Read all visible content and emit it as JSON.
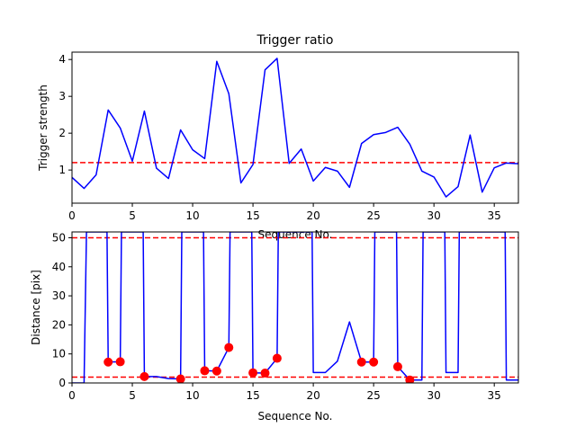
{
  "chart_data": [
    {
      "type": "line",
      "title": "Trigger ratio",
      "xlabel": "Sequence No.",
      "ylabel": "Trigger strength",
      "xlim": [
        0,
        37
      ],
      "ylim": [
        0.1,
        4.2
      ],
      "xticks": [
        "0",
        "5",
        "10",
        "15",
        "20",
        "25",
        "30",
        "35"
      ],
      "yticks": [
        "1",
        "2",
        "3",
        "4"
      ],
      "threshold": 1.2,
      "line_color": "#0000ff",
      "threshold_color": "#ff0000",
      "x": [
        0,
        1,
        2,
        3,
        4,
        5,
        6,
        7,
        8,
        9,
        10,
        11,
        12,
        13,
        14,
        15,
        16,
        17,
        18,
        19,
        20,
        21,
        22,
        23,
        24,
        25,
        26,
        27,
        28,
        29,
        30,
        31,
        32,
        33,
        34,
        35,
        36,
        37
      ],
      "values": [
        0.8,
        0.5,
        0.87,
        2.63,
        2.14,
        1.24,
        2.6,
        1.05,
        0.77,
        2.09,
        1.55,
        1.31,
        3.95,
        3.07,
        0.65,
        1.15,
        3.72,
        4.03,
        1.18,
        1.57,
        0.7,
        1.07,
        0.97,
        0.53,
        1.72,
        1.96,
        2.02,
        2.16,
        1.7,
        0.97,
        0.81,
        0.27,
        0.55,
        1.95,
        0.4,
        1.06,
        1.19,
        1.17
      ]
    },
    {
      "type": "line",
      "title": "",
      "xlabel": "Sequence No.",
      "ylabel": "Distance [pix]",
      "xlim": [
        0,
        37
      ],
      "ylim": [
        0,
        52
      ],
      "xticks": [
        "0",
        "5",
        "10",
        "15",
        "20",
        "25",
        "30",
        "35"
      ],
      "yticks": [
        "0",
        "10",
        "20",
        "30",
        "40",
        "50"
      ],
      "thresholds": [
        50,
        2
      ],
      "line_color": "#0000ff",
      "threshold_color": "#ff0000",
      "marker_color": "#ff0000",
      "line_x": [
        0,
        1,
        1.2,
        2.9,
        3,
        4,
        4.1,
        5.9,
        6,
        7,
        8,
        9,
        9.1,
        10.9,
        11,
        12,
        13,
        13.1,
        14.9,
        15,
        16,
        17,
        17.1,
        19.9,
        20,
        21,
        22,
        23,
        24,
        25,
        25.1,
        26.9,
        27,
        28,
        29,
        29.1,
        30.9,
        31,
        32,
        32.1,
        35.9,
        36,
        37
      ],
      "line_y": [
        0,
        0,
        52,
        52,
        7.2,
        7.3,
        52,
        52,
        2.2,
        2.2,
        1.5,
        1.4,
        52,
        52,
        4.2,
        4.1,
        12.2,
        52,
        52,
        3.5,
        3.4,
        8.5,
        52,
        52,
        3.6,
        3.6,
        7.5,
        21,
        7.2,
        7.2,
        52,
        52,
        5.6,
        1.0,
        1.0,
        52,
        52,
        3.6,
        3.6,
        52,
        52,
        1.0,
        1.0
      ],
      "markers_x": [
        3,
        4,
        6,
        9,
        11,
        12,
        13,
        15,
        16,
        17,
        24,
        25,
        27,
        28
      ],
      "markers_y": [
        7.2,
        7.3,
        2.2,
        1.4,
        4.2,
        4.1,
        12.2,
        3.5,
        3.4,
        8.5,
        7.2,
        7.2,
        5.6,
        1.0
      ]
    }
  ]
}
